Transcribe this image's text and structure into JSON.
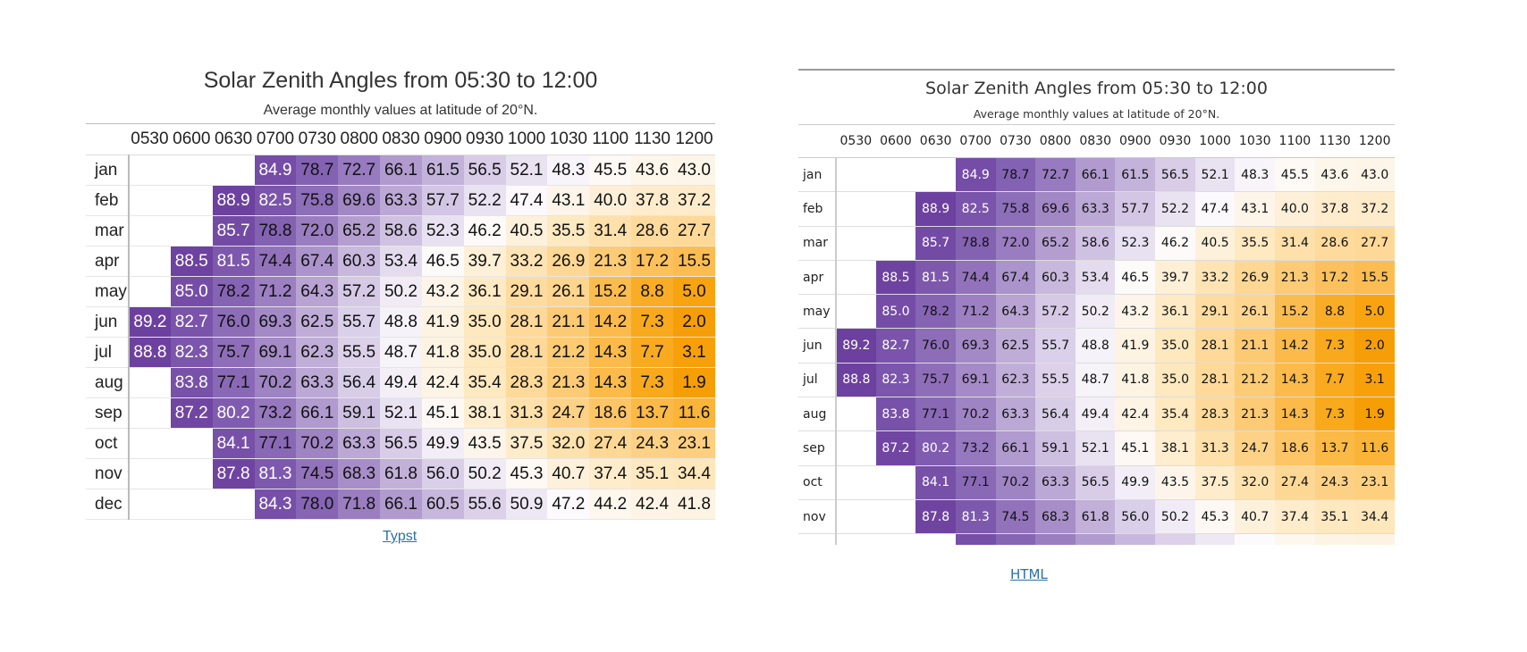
{
  "title": "Solar Zenith Angles from 05:30 to 12:00",
  "subtitle": "Average monthly values at latitude of 20°N.",
  "columns": [
    "0530",
    "0600",
    "0630",
    "0700",
    "0730",
    "0800",
    "0830",
    "0900",
    "0930",
    "1000",
    "1030",
    "1100",
    "1130",
    "1200"
  ],
  "rows": [
    {
      "month": "jan",
      "values": [
        null,
        null,
        null,
        "84.9",
        "78.7",
        "72.7",
        "66.1",
        "61.5",
        "56.5",
        "52.1",
        "48.3",
        "45.5",
        "43.6",
        "43.0"
      ]
    },
    {
      "month": "feb",
      "values": [
        null,
        null,
        "88.9",
        "82.5",
        "75.8",
        "69.6",
        "63.3",
        "57.7",
        "52.2",
        "47.4",
        "43.1",
        "40.0",
        "37.8",
        "37.2"
      ]
    },
    {
      "month": "mar",
      "values": [
        null,
        null,
        "85.7",
        "78.8",
        "72.0",
        "65.2",
        "58.6",
        "52.3",
        "46.2",
        "40.5",
        "35.5",
        "31.4",
        "28.6",
        "27.7"
      ]
    },
    {
      "month": "apr",
      "values": [
        null,
        "88.5",
        "81.5",
        "74.4",
        "67.4",
        "60.3",
        "53.4",
        "46.5",
        "39.7",
        "33.2",
        "26.9",
        "21.3",
        "17.2",
        "15.5"
      ]
    },
    {
      "month": "may",
      "values": [
        null,
        "85.0",
        "78.2",
        "71.2",
        "64.3",
        "57.2",
        "50.2",
        "43.2",
        "36.1",
        "29.1",
        "26.1",
        "15.2",
        "8.8",
        "5.0"
      ]
    },
    {
      "month": "jun",
      "values": [
        "89.2",
        "82.7",
        "76.0",
        "69.3",
        "62.5",
        "55.7",
        "48.8",
        "41.9",
        "35.0",
        "28.1",
        "21.1",
        "14.2",
        "7.3",
        "2.0"
      ]
    },
    {
      "month": "jul",
      "values": [
        "88.8",
        "82.3",
        "75.7",
        "69.1",
        "62.3",
        "55.5",
        "48.7",
        "41.8",
        "35.0",
        "28.1",
        "21.2",
        "14.3",
        "7.7",
        "3.1"
      ]
    },
    {
      "month": "aug",
      "values": [
        null,
        "83.8",
        "77.1",
        "70.2",
        "63.3",
        "56.4",
        "49.4",
        "42.4",
        "35.4",
        "28.3",
        "21.3",
        "14.3",
        "7.3",
        "1.9"
      ]
    },
    {
      "month": "sep",
      "values": [
        null,
        "87.2",
        "80.2",
        "73.2",
        "66.1",
        "59.1",
        "52.1",
        "45.1",
        "38.1",
        "31.3",
        "24.7",
        "18.6",
        "13.7",
        "11.6"
      ]
    },
    {
      "month": "oct",
      "values": [
        null,
        null,
        "84.1",
        "77.1",
        "70.2",
        "63.3",
        "56.5",
        "49.9",
        "43.5",
        "37.5",
        "32.0",
        "27.4",
        "24.3",
        "23.1"
      ]
    },
    {
      "month": "nov",
      "values": [
        null,
        null,
        "87.8",
        "81.3",
        "74.5",
        "68.3",
        "61.8",
        "56.0",
        "50.2",
        "45.3",
        "40.7",
        "37.4",
        "35.1",
        "34.4"
      ]
    },
    {
      "month": "dec",
      "values": [
        null,
        null,
        null,
        "84.3",
        "78.0",
        "71.8",
        "66.1",
        "60.5",
        "55.6",
        "50.9",
        "47.2",
        "44.2",
        "42.4",
        "41.8"
      ]
    }
  ],
  "links": {
    "typst": "Typst",
    "html": "HTML"
  }
}
